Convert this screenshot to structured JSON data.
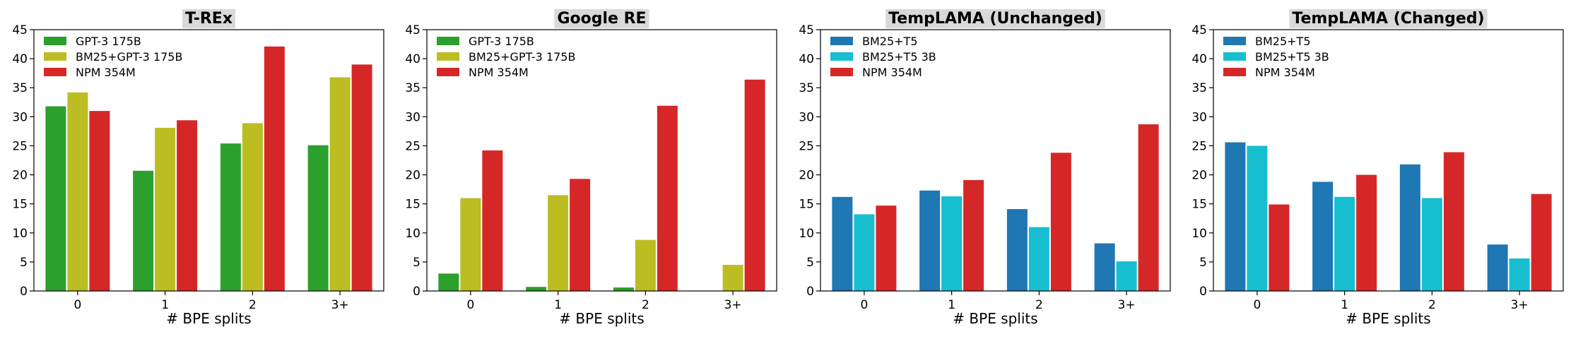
{
  "chart_data": [
    {
      "type": "bar",
      "title": "T-REx",
      "xlabel": "# BPE splits",
      "ylabel": "",
      "ylim": [
        0,
        45
      ],
      "yticks": [
        0,
        5,
        10,
        15,
        20,
        25,
        30,
        35,
        40,
        45
      ],
      "categories": [
        "0",
        "1",
        "2",
        "3+"
      ],
      "legend_position": "top-left",
      "series": [
        {
          "name": "GPT-3 175B",
          "color": "#2ca02c",
          "values": [
            31.8,
            20.7,
            25.4,
            25.1
          ]
        },
        {
          "name": "BM25+GPT-3 175B",
          "color": "#bcbd22",
          "values": [
            34.2,
            28.1,
            28.9,
            36.8
          ]
        },
        {
          "name": "NPM 354M",
          "color": "#d62728",
          "values": [
            31.0,
            29.4,
            42.1,
            39.0
          ]
        }
      ]
    },
    {
      "type": "bar",
      "title": "Google RE",
      "xlabel": "# BPE splits",
      "ylabel": "",
      "ylim": [
        0,
        45
      ],
      "yticks": [
        0,
        5,
        10,
        15,
        20,
        25,
        30,
        35,
        40,
        45
      ],
      "categories": [
        "0",
        "1",
        "2",
        "3+"
      ],
      "legend_position": "top-left",
      "series": [
        {
          "name": "GPT-3 175B",
          "color": "#2ca02c",
          "values": [
            3.0,
            0.7,
            0.6,
            0.0
          ]
        },
        {
          "name": "BM25+GPT-3 175B",
          "color": "#bcbd22",
          "values": [
            16.0,
            16.5,
            8.8,
            4.5
          ]
        },
        {
          "name": "NPM 354M",
          "color": "#d62728",
          "values": [
            24.2,
            19.3,
            31.9,
            36.4
          ]
        }
      ]
    },
    {
      "type": "bar",
      "title": "TempLAMA (Unchanged)",
      "xlabel": "# BPE splits",
      "ylabel": "",
      "ylim": [
        0,
        45
      ],
      "yticks": [
        0,
        5,
        10,
        15,
        20,
        25,
        30,
        35,
        40,
        45
      ],
      "categories": [
        "0",
        "1",
        "2",
        "3+"
      ],
      "legend_position": "top-left",
      "series": [
        {
          "name": "BM25+T5",
          "color": "#1f77b4",
          "values": [
            16.2,
            17.3,
            14.1,
            8.2
          ]
        },
        {
          "name": "BM25+T5 3B",
          "color": "#17becf",
          "values": [
            13.2,
            16.3,
            11.0,
            5.1
          ]
        },
        {
          "name": "NPM 354M",
          "color": "#d62728",
          "values": [
            14.7,
            19.1,
            23.8,
            28.7
          ]
        }
      ]
    },
    {
      "type": "bar",
      "title": "TempLAMA (Changed)",
      "xlabel": "# BPE splits",
      "ylabel": "",
      "ylim": [
        0,
        45
      ],
      "yticks": [
        0,
        5,
        10,
        15,
        20,
        25,
        30,
        35,
        40,
        45
      ],
      "categories": [
        "0",
        "1",
        "2",
        "3+"
      ],
      "legend_position": "top-left",
      "series": [
        {
          "name": "BM25+T5",
          "color": "#1f77b4",
          "values": [
            25.6,
            18.8,
            21.8,
            8.0
          ]
        },
        {
          "name": "BM25+T5 3B",
          "color": "#17becf",
          "values": [
            25.0,
            16.2,
            16.0,
            5.6
          ]
        },
        {
          "name": "NPM 354M",
          "color": "#d62728",
          "values": [
            14.9,
            20.0,
            23.9,
            16.7
          ]
        }
      ]
    }
  ]
}
